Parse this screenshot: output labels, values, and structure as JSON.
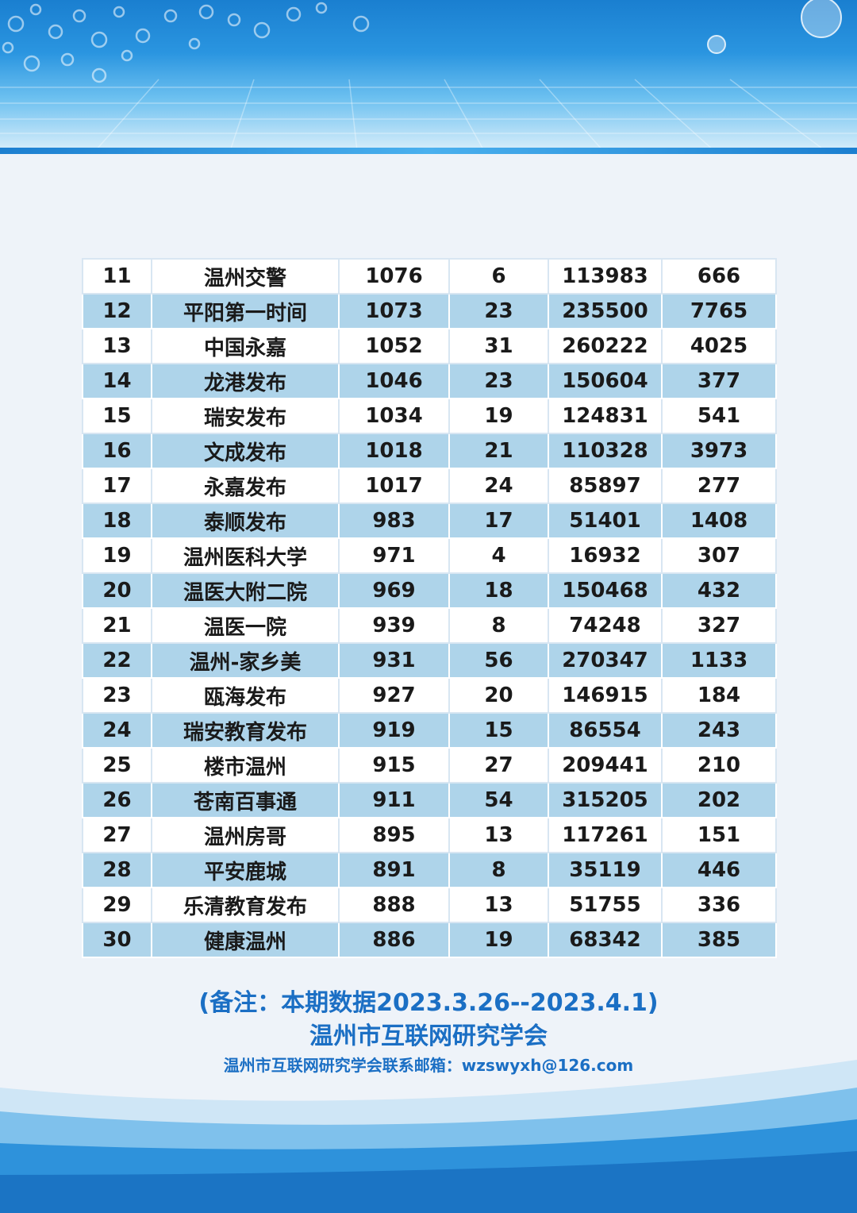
{
  "table": {
    "rows": [
      [
        "11",
        "温州交警",
        "1076",
        "6",
        "113983",
        "666"
      ],
      [
        "12",
        "平阳第一时间",
        "1073",
        "23",
        "235500",
        "7765"
      ],
      [
        "13",
        "中国永嘉",
        "1052",
        "31",
        "260222",
        "4025"
      ],
      [
        "14",
        "龙港发布",
        "1046",
        "23",
        "150604",
        "377"
      ],
      [
        "15",
        "瑞安发布",
        "1034",
        "19",
        "124831",
        "541"
      ],
      [
        "16",
        "文成发布",
        "1018",
        "21",
        "110328",
        "3973"
      ],
      [
        "17",
        "永嘉发布",
        "1017",
        "24",
        "85897",
        "277"
      ],
      [
        "18",
        "泰顺发布",
        "983",
        "17",
        "51401",
        "1408"
      ],
      [
        "19",
        "温州医科大学",
        "971",
        "4",
        "16932",
        "307"
      ],
      [
        "20",
        "温医大附二院",
        "969",
        "18",
        "150468",
        "432"
      ],
      [
        "21",
        "温医一院",
        "939",
        "8",
        "74248",
        "327"
      ],
      [
        "22",
        "温州-家乡美",
        "931",
        "56",
        "270347",
        "1133"
      ],
      [
        "23",
        "瓯海发布",
        "927",
        "20",
        "146915",
        "184"
      ],
      [
        "24",
        "瑞安教育发布",
        "919",
        "15",
        "86554",
        "243"
      ],
      [
        "25",
        "楼市温州",
        "915",
        "27",
        "209441",
        "210"
      ],
      [
        "26",
        "苍南百事通",
        "911",
        "54",
        "315205",
        "202"
      ],
      [
        "27",
        "温州房哥",
        "895",
        "13",
        "117261",
        "151"
      ],
      [
        "28",
        "平安鹿城",
        "891",
        "8",
        "35119",
        "446"
      ],
      [
        "29",
        "乐清教育发布",
        "888",
        "13",
        "51755",
        "336"
      ],
      [
        "30",
        "健康温州",
        "886",
        "19",
        "68342",
        "385"
      ]
    ]
  },
  "footer": {
    "note": "(备注：本期数据2023.3.26--2023.4.1)",
    "org": "温州市互联网研究学会",
    "contact": "温州市互联网研究学会联系邮箱：wzswyxh@126.com"
  },
  "colors": {
    "header_blue": "#1a7fd0",
    "row_highlight": "#aed4ea",
    "footer_text": "#1b6fc4"
  }
}
